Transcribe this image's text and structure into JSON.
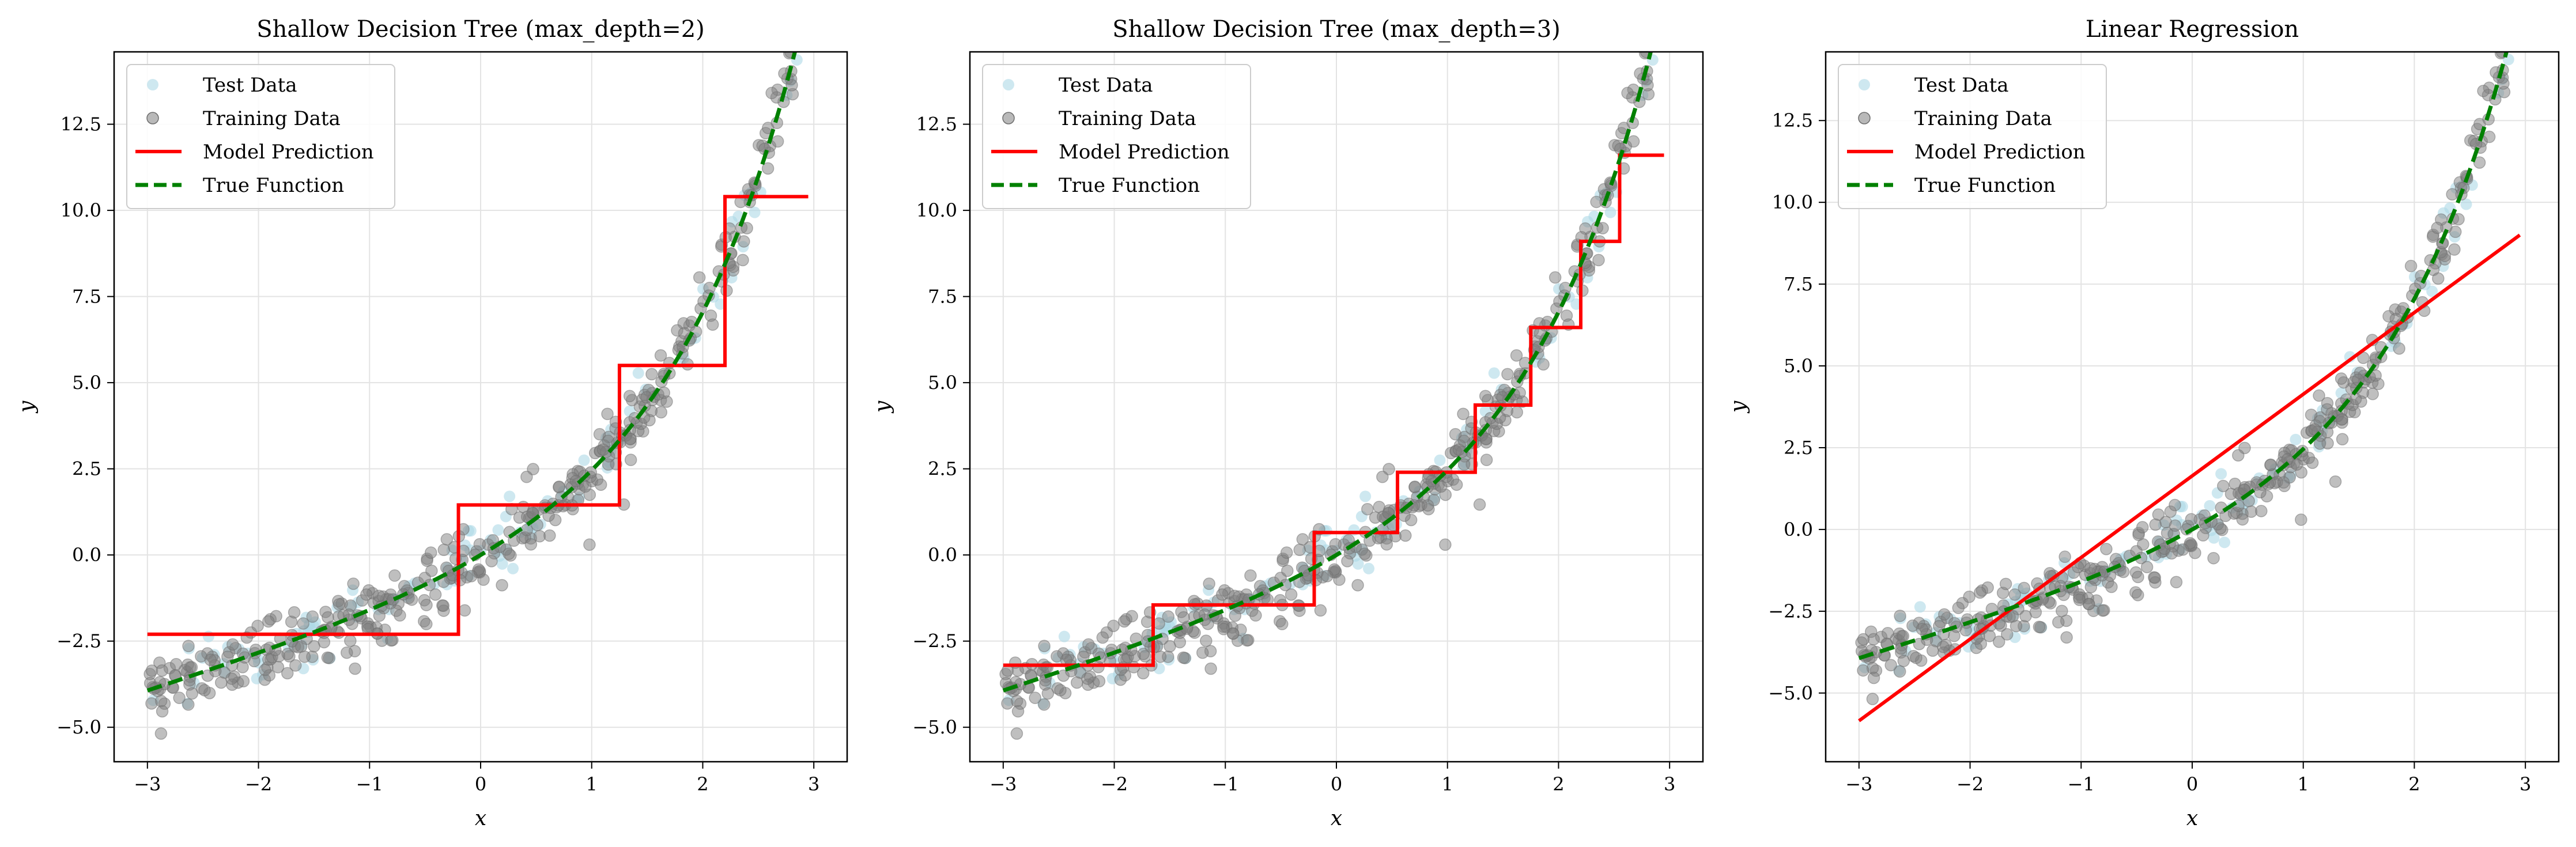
{
  "chart_data": [
    {
      "type": "scatter+line",
      "title": "Shallow Decision Tree (max_depth=2)",
      "xlabel": "x",
      "ylabel": "y",
      "xlim": [
        -3.3,
        3.3
      ],
      "ylim": [
        -6.0,
        14.6
      ],
      "xticks": [
        -3,
        -2,
        -1,
        0,
        1,
        2,
        3
      ],
      "xtick_labels": [
        "−3",
        "−2",
        "−1",
        "0",
        "1",
        "2",
        "3"
      ],
      "yticks": [
        -5,
        -2.5,
        0,
        2.5,
        5,
        7.5,
        10,
        12.5
      ],
      "ytick_labels": [
        "−5.0",
        "−2.5",
        "0.0",
        "2.5",
        "5.0",
        "7.5",
        "10.0",
        "12.5"
      ],
      "grid": true,
      "legend": "top-left",
      "legend_entries": [
        "Test Data",
        "Training Data",
        "Model Prediction",
        "True Function"
      ],
      "colors": {
        "test": "#add8e6",
        "training": "#808080",
        "model": "#ff0000",
        "true": "#008000"
      },
      "true_function": "y = exp(0.9x) + x - 1 (approx.)",
      "model_prediction": {
        "x": [
          -3.0,
          -0.2,
          -0.2,
          1.25,
          1.25,
          2.2,
          2.2,
          2.95
        ],
        "y": [
          -2.3,
          -2.3,
          1.45,
          1.45,
          5.5,
          5.5,
          10.4,
          10.4
        ]
      }
    },
    {
      "type": "scatter+line",
      "title": "Shallow Decision Tree (max_depth=3)",
      "xlabel": "x",
      "ylabel": "y",
      "xlim": [
        -3.3,
        3.3
      ],
      "ylim": [
        -6.0,
        14.6
      ],
      "xticks": [
        -3,
        -2,
        -1,
        0,
        1,
        2,
        3
      ],
      "xtick_labels": [
        "−3",
        "−2",
        "−1",
        "0",
        "1",
        "2",
        "3"
      ],
      "yticks": [
        -5,
        -2.5,
        0,
        2.5,
        5,
        7.5,
        10,
        12.5
      ],
      "ytick_labels": [
        "−5.0",
        "−2.5",
        "0.0",
        "2.5",
        "5.0",
        "7.5",
        "10.0",
        "12.5"
      ],
      "grid": true,
      "legend": "top-left",
      "legend_entries": [
        "Test Data",
        "Training Data",
        "Model Prediction",
        "True Function"
      ],
      "colors": {
        "test": "#add8e6",
        "training": "#808080",
        "model": "#ff0000",
        "true": "#008000"
      },
      "model_prediction": {
        "x": [
          -3.0,
          -1.65,
          -1.65,
          -0.2,
          -0.2,
          0.55,
          0.55,
          1.25,
          1.25,
          1.75,
          1.75,
          2.2,
          2.2,
          2.55,
          2.55,
          2.95
        ],
        "y": [
          -3.2,
          -3.2,
          -1.45,
          -1.45,
          0.65,
          0.65,
          2.4,
          2.4,
          4.35,
          4.35,
          6.6,
          6.6,
          9.1,
          9.1,
          11.6,
          11.6
        ]
      }
    },
    {
      "type": "scatter+line",
      "title": "Linear Regression",
      "xlabel": "x",
      "ylabel": "y",
      "xlim": [
        -3.3,
        3.3
      ],
      "ylim": [
        -7.1,
        14.6
      ],
      "xticks": [
        -3,
        -2,
        -1,
        0,
        1,
        2,
        3
      ],
      "xtick_labels": [
        "−3",
        "−2",
        "−1",
        "0",
        "1",
        "2",
        "3"
      ],
      "yticks": [
        -5,
        -2.5,
        0,
        2.5,
        5,
        7.5,
        10,
        12.5
      ],
      "ytick_labels": [
        "−5.0",
        "−2.5",
        "0.0",
        "2.5",
        "5.0",
        "7.5",
        "10.0",
        "12.5"
      ],
      "grid": true,
      "legend": "top-left",
      "legend_entries": [
        "Test Data",
        "Training Data",
        "Model Prediction",
        "True Function"
      ],
      "colors": {
        "test": "#add8e6",
        "training": "#808080",
        "model": "#ff0000",
        "true": "#008000"
      },
      "model_prediction": {
        "x": [
          -3.0,
          2.95
        ],
        "y": [
          -5.85,
          9.0
        ]
      }
    }
  ]
}
